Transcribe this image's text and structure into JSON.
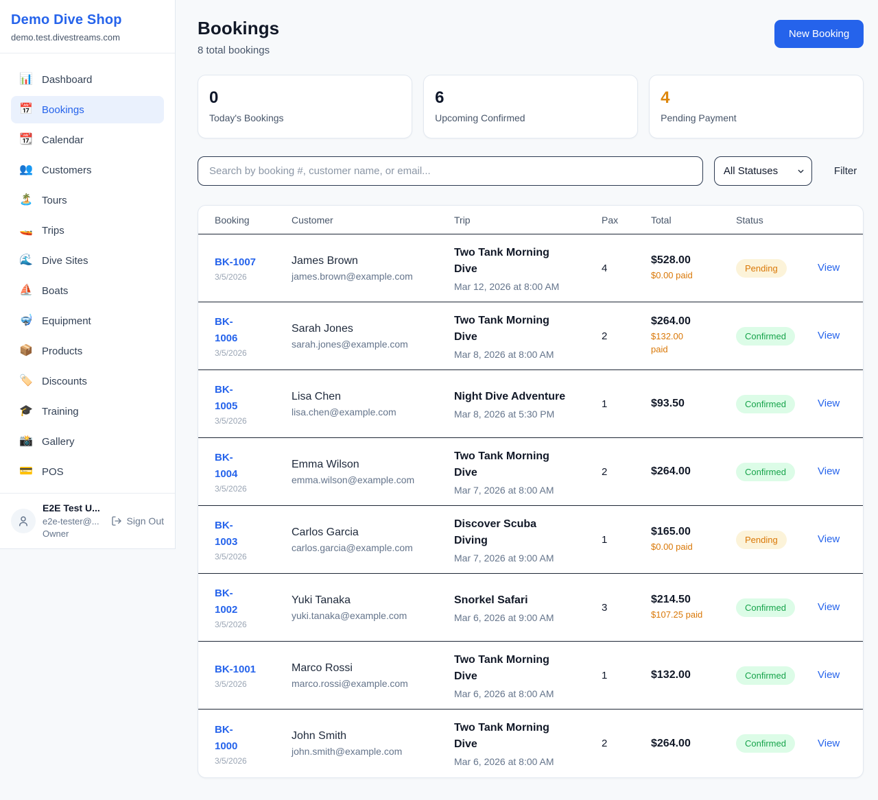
{
  "brand": {
    "name": "Demo Dive Shop",
    "domain": "demo.test.divestreams.com"
  },
  "sidebar": {
    "items": [
      {
        "label": "Dashboard",
        "icon": "bar-chart-icon",
        "glyph": "📊",
        "active": false
      },
      {
        "label": "Bookings",
        "icon": "calendar-date-icon",
        "glyph": "📅",
        "active": true
      },
      {
        "label": "Calendar",
        "icon": "tear-off-calendar-icon",
        "glyph": "📆",
        "active": false
      },
      {
        "label": "Customers",
        "icon": "people-icon",
        "glyph": "👥",
        "active": false
      },
      {
        "label": "Tours",
        "icon": "island-icon",
        "glyph": "🏝️",
        "active": false
      },
      {
        "label": "Trips",
        "icon": "speedboat-icon",
        "glyph": "🚤",
        "active": false
      },
      {
        "label": "Dive Sites",
        "icon": "wave-icon",
        "glyph": "🌊",
        "active": false
      },
      {
        "label": "Boats",
        "icon": "sailboat-icon",
        "glyph": "⛵",
        "active": false
      },
      {
        "label": "Equipment",
        "icon": "diving-mask-icon",
        "glyph": "🤿",
        "active": false
      },
      {
        "label": "Products",
        "icon": "package-icon",
        "glyph": "📦",
        "active": false
      },
      {
        "label": "Discounts",
        "icon": "tag-icon",
        "glyph": "🏷️",
        "active": false
      },
      {
        "label": "Training",
        "icon": "graduation-cap-icon",
        "glyph": "🎓",
        "active": false
      },
      {
        "label": "Gallery",
        "icon": "camera-icon",
        "glyph": "📸",
        "active": false
      },
      {
        "label": "POS",
        "icon": "credit-card-icon",
        "glyph": "💳",
        "active": false
      }
    ]
  },
  "user": {
    "name": "E2E Test U...",
    "email": "e2e-tester@...",
    "role": "Owner",
    "sign_out_label": "Sign Out"
  },
  "header": {
    "title": "Bookings",
    "subtitle": "8 total bookings",
    "new_booking_label": "New Booking"
  },
  "stats": [
    {
      "value": "0",
      "label": "Today's Bookings",
      "color": "#0f172a"
    },
    {
      "value": "6",
      "label": "Upcoming Confirmed",
      "color": "#0f172a"
    },
    {
      "value": "4",
      "label": "Pending Payment",
      "color": "#dd860b"
    }
  ],
  "filters": {
    "search_placeholder": "Search by booking #, customer name, or email...",
    "status_selected": "All Statuses",
    "filter_label": "Filter"
  },
  "table": {
    "columns": [
      "Booking",
      "Customer",
      "Trip",
      "Pax",
      "Total",
      "Status"
    ],
    "view_label": "View",
    "rows": [
      {
        "id": "BK-1007",
        "date": "3/5/2026",
        "customer_name": "James Brown",
        "customer_email": "james.brown@example.com",
        "trip_name": "Two Tank Morning\nDive",
        "trip_datetime": "Mar 12, 2026 at 8:00 AM",
        "pax": "4",
        "total": "$528.00",
        "paid": "$0.00 paid",
        "status": "Pending"
      },
      {
        "id": "BK-\n1006",
        "date": "3/5/2026",
        "customer_name": "Sarah Jones",
        "customer_email": "sarah.jones@example.com",
        "trip_name": "Two Tank Morning\nDive",
        "trip_datetime": "Mar 8, 2026 at 8:00 AM",
        "pax": "2",
        "total": "$264.00",
        "paid": "$132.00\npaid",
        "status": "Confirmed"
      },
      {
        "id": "BK-\n1005",
        "date": "3/5/2026",
        "customer_name": "Lisa Chen",
        "customer_email": "lisa.chen@example.com",
        "trip_name": "Night Dive Adventure",
        "trip_datetime": "Mar 8, 2026 at 5:30 PM",
        "pax": "1",
        "total": "$93.50",
        "paid": null,
        "status": "Confirmed"
      },
      {
        "id": "BK-\n1004",
        "date": "3/5/2026",
        "customer_name": "Emma Wilson",
        "customer_email": "emma.wilson@example.com",
        "trip_name": "Two Tank Morning\nDive",
        "trip_datetime": "Mar 7, 2026 at 8:00 AM",
        "pax": "2",
        "total": "$264.00",
        "paid": null,
        "status": "Confirmed"
      },
      {
        "id": "BK-\n1003",
        "date": "3/5/2026",
        "customer_name": "Carlos Garcia",
        "customer_email": "carlos.garcia@example.com",
        "trip_name": "Discover Scuba\nDiving",
        "trip_datetime": "Mar 7, 2026 at 9:00 AM",
        "pax": "1",
        "total": "$165.00",
        "paid": "$0.00 paid",
        "status": "Pending"
      },
      {
        "id": "BK-\n1002",
        "date": "3/5/2026",
        "customer_name": "Yuki Tanaka",
        "customer_email": "yuki.tanaka@example.com",
        "trip_name": "Snorkel Safari",
        "trip_datetime": "Mar 6, 2026 at 9:00 AM",
        "pax": "3",
        "total": "$214.50",
        "paid": "$107.25 paid",
        "status": "Confirmed"
      },
      {
        "id": "BK-1001",
        "date": "3/5/2026",
        "customer_name": "Marco Rossi",
        "customer_email": "marco.rossi@example.com",
        "trip_name": "Two Tank Morning\nDive",
        "trip_datetime": "Mar 6, 2026 at 8:00 AM",
        "pax": "1",
        "total": "$132.00",
        "paid": null,
        "status": "Confirmed"
      },
      {
        "id": "BK-\n1000",
        "date": "3/5/2026",
        "customer_name": "John Smith",
        "customer_email": "john.smith@example.com",
        "trip_name": "Two Tank Morning\nDive",
        "trip_datetime": "Mar 6, 2026 at 8:00 AM",
        "pax": "2",
        "total": "$264.00",
        "paid": null,
        "status": "Confirmed"
      }
    ]
  },
  "colors": {
    "accent": "#2563eb",
    "pending_text": "#d97706",
    "pending_bg": "#fcf3d9",
    "confirmed_text": "#16a34a",
    "confirmed_bg": "#dcfce7",
    "paid_amount": "#d97706"
  }
}
